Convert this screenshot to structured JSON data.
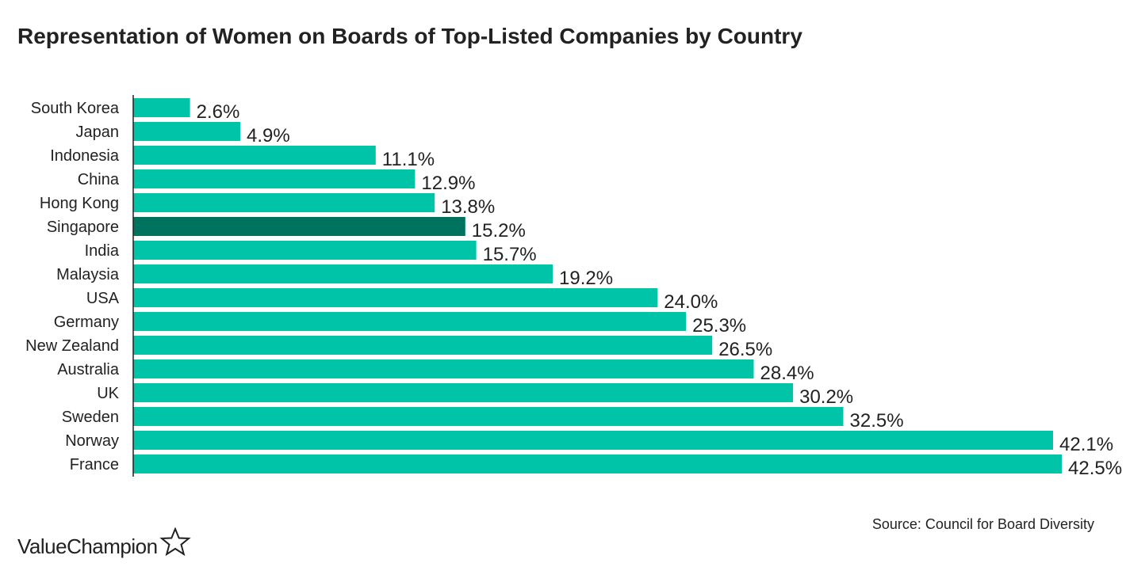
{
  "title": "Representation of Women on Boards of Top-Listed Companies by Country",
  "source": "Source: Council for Board Diversity",
  "logo": {
    "text": "ValueChampion",
    "icon": "star-outline-icon"
  },
  "colors": {
    "bar": "#00c4a8",
    "highlight": "#00735e",
    "axis": "#222222"
  },
  "chart_data": {
    "type": "bar",
    "orientation": "horizontal",
    "title": "Representation of Women on Boards of Top-Listed Companies by Country",
    "xlabel": "",
    "ylabel": "",
    "xlim": [
      0,
      42.5
    ],
    "grid": false,
    "legend": "none",
    "highlight_category": "Singapore",
    "categories": [
      "South Korea",
      "Japan",
      "Indonesia",
      "China",
      "Hong Kong",
      "Singapore",
      "India",
      "Malaysia",
      "USA",
      "Germany",
      "New Zealand",
      "Australia",
      "UK",
      "Sweden",
      "Norway",
      "France"
    ],
    "values": [
      2.6,
      4.9,
      11.1,
      12.9,
      13.8,
      15.2,
      15.7,
      19.2,
      24.0,
      25.3,
      26.5,
      28.4,
      30.2,
      32.5,
      42.1,
      42.5
    ],
    "value_labels": [
      "2.6%",
      "4.9%",
      "11.1%",
      "12.9%",
      "13.8%",
      "15.2%",
      "15.7%",
      "19.2%",
      "24.0%",
      "25.3%",
      "26.5%",
      "28.4%",
      "30.2%",
      "32.5%",
      "42.1%",
      "42.5%"
    ]
  }
}
